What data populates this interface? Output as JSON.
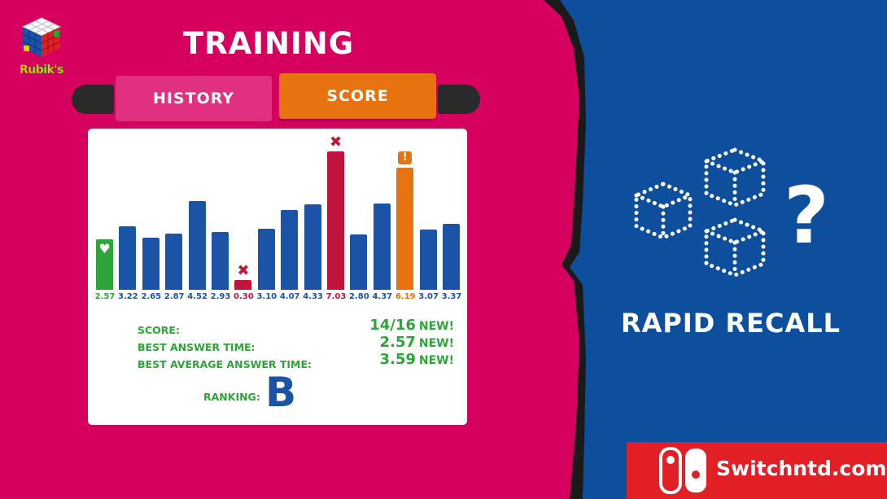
{
  "header": {
    "title": "TRAINING"
  },
  "tabs": [
    {
      "label": "HISTORY",
      "active": false
    },
    {
      "label": "SCORE",
      "active": true
    }
  ],
  "logo": {
    "text": "Rubik's"
  },
  "colors": {
    "normal": "#1b53a6",
    "best": "#2ea538",
    "wrong": "#c0143c",
    "warning": "#e67310"
  },
  "chart_data": {
    "type": "bar",
    "values": [
      2.57,
      3.22,
      2.65,
      2.87,
      4.52,
      2.93,
      0.3,
      3.1,
      4.07,
      4.33,
      7.03,
      2.8,
      4.37,
      6.19,
      3.07,
      3.37
    ],
    "labels": [
      "2.57",
      "3.22",
      "2.65",
      "2.87",
      "4.52",
      "2.93",
      "0.30",
      "3.10",
      "4.07",
      "4.33",
      "7.03",
      "2.80",
      "4.37",
      "6.19",
      "3.07",
      "3.37"
    ],
    "status": [
      "best",
      "normal",
      "normal",
      "normal",
      "normal",
      "normal",
      "wrong",
      "normal",
      "normal",
      "normal",
      "wrong",
      "normal",
      "normal",
      "warning",
      "normal",
      "normal"
    ],
    "marks": {
      "0": "heart-icon",
      "6": "cross-icon",
      "10": "cross-icon",
      "13": "exclamation-icon"
    }
  },
  "stats": {
    "score": {
      "label": "SCORE:",
      "value": "14/16",
      "badge": "NEW!"
    },
    "best_answer_time": {
      "label": "BEST ANSWER TIME:",
      "value": "2.57",
      "badge": "NEW!"
    },
    "best_average_answer_time": {
      "label": "BEST AVERAGE ANSWER TIME:",
      "value": "3.59",
      "badge": "NEW!"
    },
    "ranking": {
      "label": "RANKING:",
      "value": "B"
    }
  },
  "game_mode": {
    "title": "RAPID RECALL",
    "icon": "dotted-cubes-question-icon"
  },
  "watermark": {
    "text": "Switchntd.com"
  }
}
